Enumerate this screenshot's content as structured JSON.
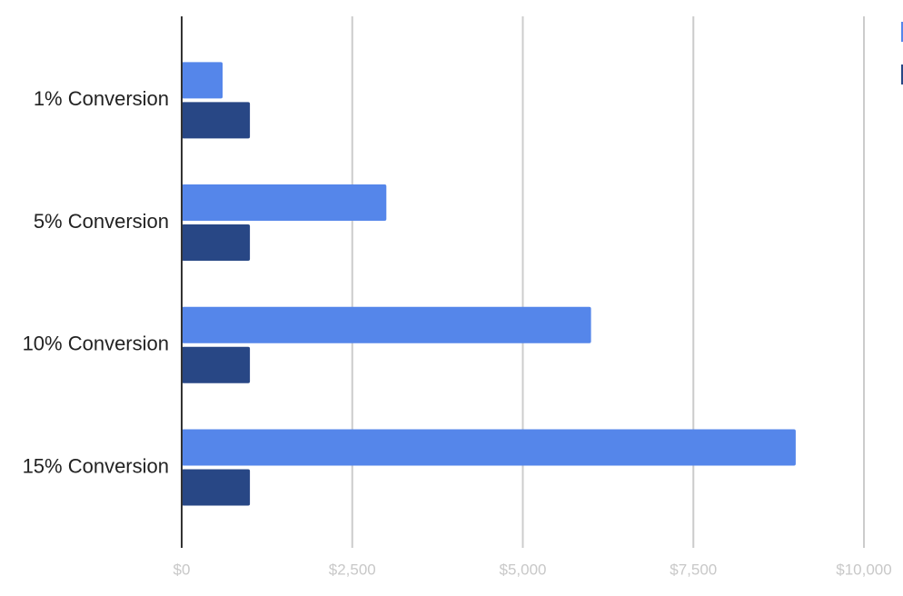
{
  "chart_data": {
    "type": "bar",
    "orientation": "horizontal",
    "categories": [
      "1% Conversion",
      "5% Conversion",
      "10% Conversion",
      "15% Conversion"
    ],
    "series": [
      {
        "color": "#5586ea",
        "values": [
          600,
          3000,
          6000,
          9000
        ]
      },
      {
        "color": "#284785",
        "values": [
          1000,
          1000,
          1000,
          1000
        ]
      }
    ],
    "xlim": [
      0,
      10000
    ],
    "xticks": [
      {
        "value": 0,
        "label": "$0"
      },
      {
        "value": 2500,
        "label": "$2,500"
      },
      {
        "value": 5000,
        "label": "$5,000"
      },
      {
        "value": 7500,
        "label": "$7,500"
      },
      {
        "value": 10000,
        "label": "$10,000"
      }
    ],
    "grid": true
  }
}
